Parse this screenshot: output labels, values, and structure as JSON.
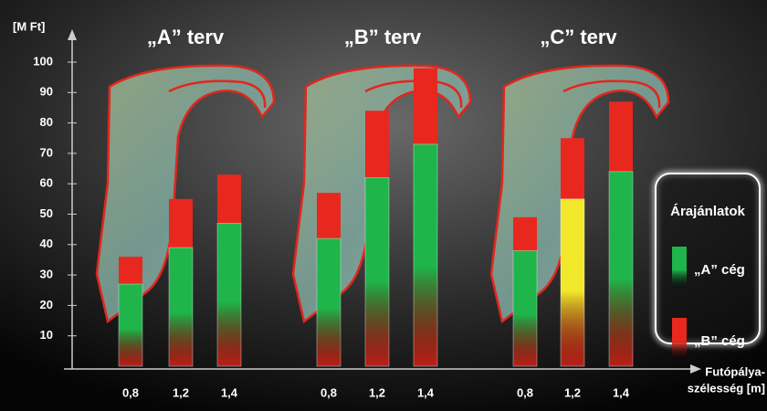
{
  "chart_data": {
    "type": "bar",
    "y_label": "[M Ft]",
    "x_label": [
      "Futópálya-",
      "szélesség [m]"
    ],
    "legend_title": "Árajánlatok",
    "groups": [
      "„A” terv",
      "„B” terv",
      "„C” terv"
    ],
    "categories": [
      "0,8",
      "1,2",
      "1,4",
      "0,8",
      "1,2",
      "1,4",
      "0,8",
      "1,2",
      "1,4"
    ],
    "series": [
      {
        "name": "„A” cég",
        "color": "#1fb54a",
        "colors": [
          "#1fb54a",
          "#1fb54a",
          "#1fb54a",
          "#1fb54a",
          "#1fb54a",
          "#1fb54a",
          "#1fb54a",
          "#f2e82a",
          "#1fb54a"
        ],
        "values": [
          27,
          39,
          47,
          42,
          62,
          73,
          38,
          55,
          64
        ]
      },
      {
        "name": "„B” cég",
        "color": "#e8281e",
        "values": [
          36,
          55,
          63,
          57,
          84,
          98,
          49,
          75,
          87
        ]
      }
    ],
    "ylim": [
      0,
      100
    ],
    "yticks": [
      10,
      20,
      30,
      40,
      50,
      60,
      70,
      80,
      90,
      100
    ]
  }
}
